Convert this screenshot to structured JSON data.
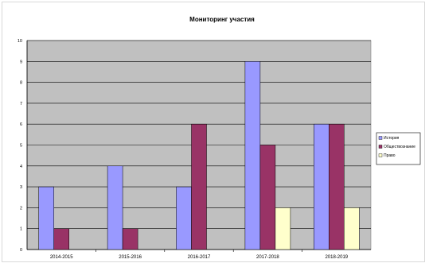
{
  "chart_data": {
    "type": "bar",
    "title": "Мониторинг участия",
    "xlabel": "",
    "ylabel": "",
    "categories": [
      "2014-2015",
      "2015-2016",
      "2016-2017",
      "2017-2018",
      "2018-2019"
    ],
    "series": [
      {
        "name": "История",
        "values": [
          3,
          4,
          3,
          9,
          6
        ],
        "color": "#9999ff"
      },
      {
        "name": "Обществознание",
        "values": [
          1,
          1,
          6,
          5,
          6
        ],
        "color": "#993366"
      },
      {
        "name": "Право",
        "values": [
          0,
          0,
          0,
          2,
          2
        ],
        "color": "#ffffcc"
      }
    ],
    "ylim": [
      0,
      10
    ],
    "yticks": [
      0,
      1,
      2,
      3,
      4,
      5,
      6,
      7,
      8,
      9,
      10
    ],
    "grid": true,
    "plot_background": "#c0c0c0",
    "legend": "right"
  }
}
